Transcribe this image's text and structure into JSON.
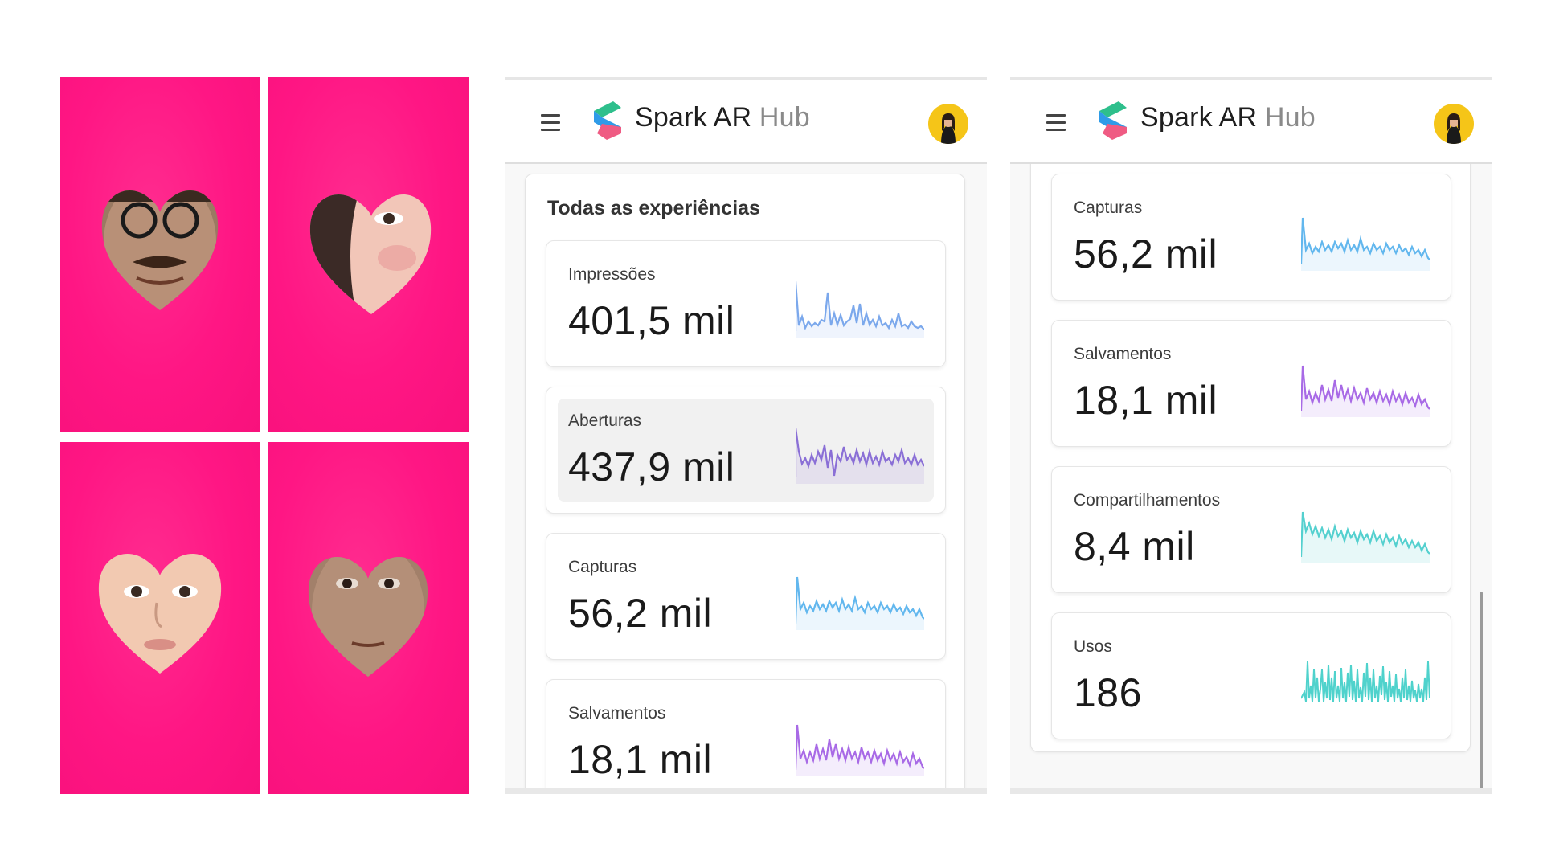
{
  "app": {
    "brand_primary": "Spark AR",
    "brand_secondary": "Hub"
  },
  "collage": {
    "background_color": "#ff1684",
    "tiles": [
      "heart-face-1",
      "heart-face-2",
      "heart-face-3",
      "heart-face-4"
    ]
  },
  "left_phone": {
    "section_title": "Todas as experiências",
    "metrics": [
      {
        "label": "Impressões",
        "value": "401,5 mil",
        "color": "#7ba8ec"
      },
      {
        "label": "Aberturas",
        "value": "437,9 mil",
        "color": "#8a6fd6"
      },
      {
        "label": "Capturas",
        "value": "56,2 mil",
        "color": "#62b7ee"
      },
      {
        "label": "Salvamentos",
        "value": "18,1 mil",
        "color": "#a86ae6"
      }
    ]
  },
  "right_phone": {
    "metrics": [
      {
        "label": "Capturas",
        "value": "56,2 mil",
        "color": "#62b7ee"
      },
      {
        "label": "Salvamentos",
        "value": "18,1 mil",
        "color": "#a86ae6"
      },
      {
        "label": "Compartilhamentos",
        "value": "8,4 mil",
        "color": "#54d0cf"
      },
      {
        "label": "Usos",
        "value": "186",
        "color": "#4fd2cc"
      }
    ]
  }
}
